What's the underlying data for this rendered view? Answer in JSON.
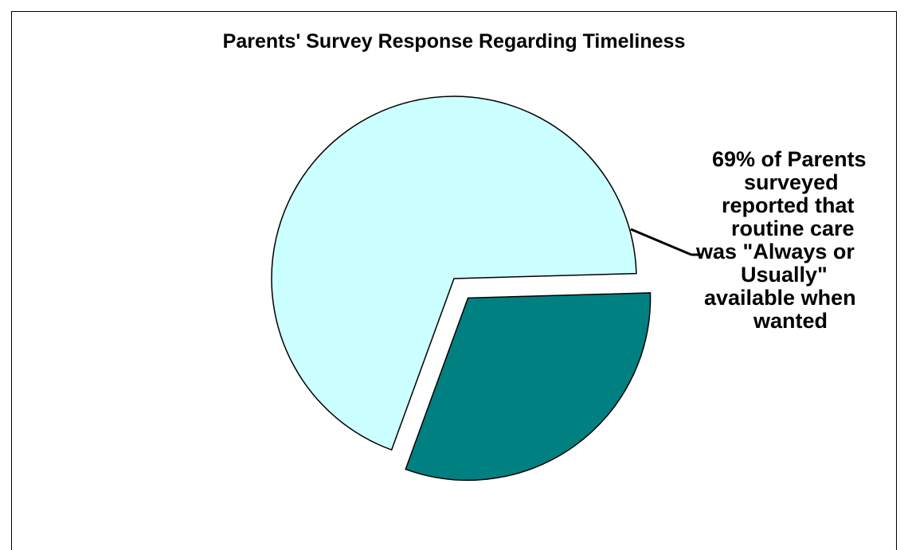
{
  "chart_data": {
    "type": "pie",
    "title": "Parents' Survey Response Regarding Timeliness",
    "slices": [
      {
        "value": 69,
        "color": "#CCFFFF",
        "exploded": false
      },
      {
        "value": 31,
        "color": "#008080",
        "exploded": true
      }
    ],
    "annotation_lines": [
      "69% of Parents",
      "surveyed",
      "reported that",
      "routine care",
      " was \"Always or",
      "Usually\"",
      "available when",
      "wanted"
    ]
  }
}
